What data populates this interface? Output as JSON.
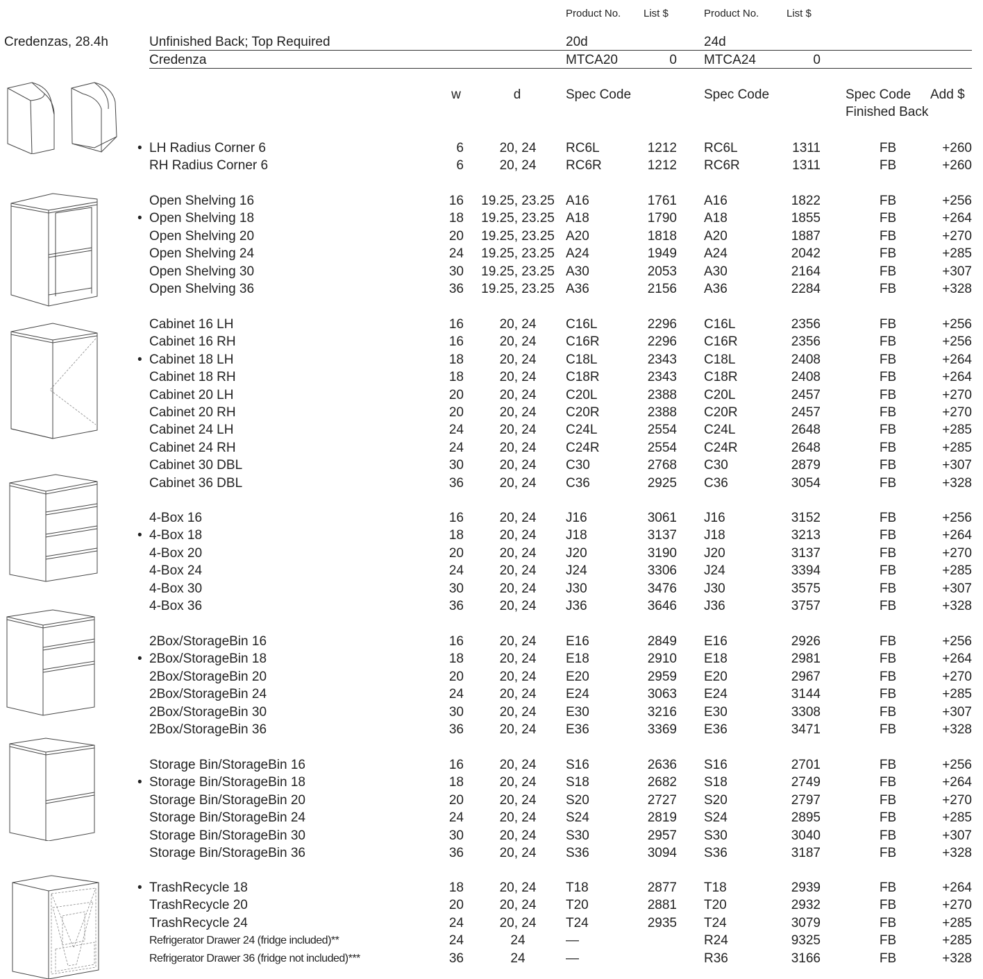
{
  "section_title": "Credenzas, 28.4h",
  "top_header": {
    "col1_product": "Product No.",
    "col1_list": "List $",
    "col2_product": "Product No.",
    "col2_list": "List $"
  },
  "base_rows": [
    {
      "label": "Unfinished Back; Top Required",
      "p20": "20d",
      "l20": "",
      "p24": "24d",
      "l24": ""
    },
    {
      "label": "Credenza",
      "p20": "MTCA20",
      "l20": "0",
      "p24": "MTCA24",
      "l24": "0"
    }
  ],
  "sub_header": {
    "w": "w",
    "d": "d",
    "spec1": "Spec Code",
    "spec2": "Spec Code",
    "spec3": "Spec Code",
    "add": "Add $",
    "finished_back": "Finished Back"
  },
  "groups": [
    {
      "icon": "radius-corner-icon",
      "rows": [
        {
          "dot": true,
          "name": "LH Radius Corner 6",
          "w": "6",
          "d": "20, 24",
          "c20": "RC6L",
          "p20": "1212",
          "c24": "RC6L",
          "p24": "1311",
          "fb": "FB",
          "add": "+260"
        },
        {
          "dot": false,
          "name": "RH Radius Corner 6",
          "w": "6",
          "d": "20, 24",
          "c20": "RC6R",
          "p20": "1212",
          "c24": "RC6R",
          "p24": "1311",
          "fb": "FB",
          "add": "+260"
        }
      ]
    },
    {
      "icon": "open-shelving-icon",
      "rows": [
        {
          "dot": false,
          "name": "Open Shelving 16",
          "w": "16",
          "d": "19.25, 23.25",
          "c20": "A16",
          "p20": "1761",
          "c24": "A16",
          "p24": "1822",
          "fb": "FB",
          "add": "+256"
        },
        {
          "dot": true,
          "name": "Open Shelving 18",
          "w": "18",
          "d": "19.25, 23.25",
          "c20": "A18",
          "p20": "1790",
          "c24": "A18",
          "p24": "1855",
          "fb": "FB",
          "add": "+264"
        },
        {
          "dot": false,
          "name": "Open Shelving 20",
          "w": "20",
          "d": "19.25, 23.25",
          "c20": "A20",
          "p20": "1818",
          "c24": "A20",
          "p24": "1887",
          "fb": "FB",
          "add": "+270"
        },
        {
          "dot": false,
          "name": "Open Shelving 24",
          "w": "24",
          "d": "19.25, 23.25",
          "c20": "A24",
          "p20": "1949",
          "c24": "A24",
          "p24": "2042",
          "fb": "FB",
          "add": "+285"
        },
        {
          "dot": false,
          "name": "Open Shelving 30",
          "w": "30",
          "d": "19.25, 23.25",
          "c20": "A30",
          "p20": "2053",
          "c24": "A30",
          "p24": "2164",
          "fb": "FB",
          "add": "+307"
        },
        {
          "dot": false,
          "name": "Open Shelving 36",
          "w": "36",
          "d": "19.25, 23.25",
          "c20": "A36",
          "p20": "2156",
          "c24": "A36",
          "p24": "2284",
          "fb": "FB",
          "add": "+328"
        }
      ]
    },
    {
      "icon": "cabinet-icon",
      "rows": [
        {
          "dot": false,
          "name": "Cabinet 16 LH",
          "w": "16",
          "d": "20, 24",
          "c20": "C16L",
          "p20": "2296",
          "c24": "C16L",
          "p24": "2356",
          "fb": "FB",
          "add": "+256"
        },
        {
          "dot": false,
          "name": "Cabinet 16 RH",
          "w": "16",
          "d": "20, 24",
          "c20": "C16R",
          "p20": "2296",
          "c24": "C16R",
          "p24": "2356",
          "fb": "FB",
          "add": "+256"
        },
        {
          "dot": true,
          "name": "Cabinet 18 LH",
          "w": "18",
          "d": "20, 24",
          "c20": "C18L",
          "p20": "2343",
          "c24": "C18L",
          "p24": "2408",
          "fb": "FB",
          "add": "+264"
        },
        {
          "dot": false,
          "name": "Cabinet 18 RH",
          "w": "18",
          "d": "20, 24",
          "c20": "C18R",
          "p20": "2343",
          "c24": "C18R",
          "p24": "2408",
          "fb": "FB",
          "add": "+264"
        },
        {
          "dot": false,
          "name": "Cabinet 20 LH",
          "w": "20",
          "d": "20, 24",
          "c20": "C20L",
          "p20": "2388",
          "c24": "C20L",
          "p24": "2457",
          "fb": "FB",
          "add": "+270"
        },
        {
          "dot": false,
          "name": "Cabinet 20 RH",
          "w": "20",
          "d": "20, 24",
          "c20": "C20R",
          "p20": "2388",
          "c24": "C20R",
          "p24": "2457",
          "fb": "FB",
          "add": "+270"
        },
        {
          "dot": false,
          "name": "Cabinet 24 LH",
          "w": "24",
          "d": "20, 24",
          "c20": "C24L",
          "p20": "2554",
          "c24": "C24L",
          "p24": "2648",
          "fb": "FB",
          "add": "+285"
        },
        {
          "dot": false,
          "name": "Cabinet 24 RH",
          "w": "24",
          "d": "20, 24",
          "c20": "C24R",
          "p20": "2554",
          "c24": "C24R",
          "p24": "2648",
          "fb": "FB",
          "add": "+285"
        },
        {
          "dot": false,
          "name": "Cabinet 30 DBL",
          "w": "30",
          "d": "20, 24",
          "c20": "C30",
          "p20": "2768",
          "c24": "C30",
          "p24": "2879",
          "fb": "FB",
          "add": "+307"
        },
        {
          "dot": false,
          "name": "Cabinet 36 DBL",
          "w": "36",
          "d": "20, 24",
          "c20": "C36",
          "p20": "2925",
          "c24": "C36",
          "p24": "3054",
          "fb": "FB",
          "add": "+328"
        }
      ]
    },
    {
      "icon": "four-box-drawer-icon",
      "rows": [
        {
          "dot": false,
          "name": "4-Box 16",
          "w": "16",
          "d": "20, 24",
          "c20": "J16",
          "p20": "3061",
          "c24": "J16",
          "p24": "3152",
          "fb": "FB",
          "add": "+256"
        },
        {
          "dot": true,
          "name": "4-Box 18",
          "w": "18",
          "d": "20, 24",
          "c20": "J18",
          "p20": "3137",
          "c24": "J18",
          "p24": "3213",
          "fb": "FB",
          "add": "+264"
        },
        {
          "dot": false,
          "name": "4-Box 20",
          "w": "20",
          "d": "20, 24",
          "c20": "J20",
          "p20": "3190",
          "c24": "J20",
          "p24": "3137",
          "fb": "FB",
          "add": "+270"
        },
        {
          "dot": false,
          "name": "4-Box 24",
          "w": "24",
          "d": "20, 24",
          "c20": "J24",
          "p20": "3306",
          "c24": "J24",
          "p24": "3394",
          "fb": "FB",
          "add": "+285"
        },
        {
          "dot": false,
          "name": "4-Box 30",
          "w": "30",
          "d": "20, 24",
          "c20": "J30",
          "p20": "3476",
          "c24": "J30",
          "p24": "3575",
          "fb": "FB",
          "add": "+307"
        },
        {
          "dot": false,
          "name": "4-Box 36",
          "w": "36",
          "d": "20, 24",
          "c20": "J36",
          "p20": "3646",
          "c24": "J36",
          "p24": "3757",
          "fb": "FB",
          "add": "+328"
        }
      ]
    },
    {
      "icon": "two-box-storage-bin-icon",
      "rows": [
        {
          "dot": false,
          "name": "2Box/StorageBin 16",
          "w": "16",
          "d": "20, 24",
          "c20": "E16",
          "p20": "2849",
          "c24": "E16",
          "p24": "2926",
          "fb": "FB",
          "add": "+256"
        },
        {
          "dot": true,
          "name": "2Box/StorageBin 18",
          "w": "18",
          "d": "20, 24",
          "c20": "E18",
          "p20": "2910",
          "c24": "E18",
          "p24": "2981",
          "fb": "FB",
          "add": "+264"
        },
        {
          "dot": false,
          "name": "2Box/StorageBin 20",
          "w": "20",
          "d": "20, 24",
          "c20": "E20",
          "p20": "2959",
          "c24": "E20",
          "p24": "2967",
          "fb": "FB",
          "add": "+270"
        },
        {
          "dot": false,
          "name": "2Box/StorageBin 24",
          "w": "24",
          "d": "20, 24",
          "c20": "E24",
          "p20": "3063",
          "c24": "E24",
          "p24": "3144",
          "fb": "FB",
          "add": "+285"
        },
        {
          "dot": false,
          "name": "2Box/StorageBin 30",
          "w": "30",
          "d": "20, 24",
          "c20": "E30",
          "p20": "3216",
          "c24": "E30",
          "p24": "3308",
          "fb": "FB",
          "add": "+307"
        },
        {
          "dot": false,
          "name": "2Box/StorageBin 36",
          "w": "36",
          "d": "20, 24",
          "c20": "E36",
          "p20": "3369",
          "c24": "E36",
          "p24": "3471",
          "fb": "FB",
          "add": "+328"
        }
      ]
    },
    {
      "icon": "storage-bin-icon",
      "rows": [
        {
          "dot": false,
          "name": "Storage Bin/StorageBin 16",
          "w": "16",
          "d": "20, 24",
          "c20": "S16",
          "p20": "2636",
          "c24": "S16",
          "p24": "2701",
          "fb": "FB",
          "add": "+256"
        },
        {
          "dot": true,
          "name": "Storage Bin/StorageBin 18",
          "w": "18",
          "d": "20, 24",
          "c20": "S18",
          "p20": "2682",
          "c24": "S18",
          "p24": "2749",
          "fb": "FB",
          "add": "+264"
        },
        {
          "dot": false,
          "name": "Storage Bin/StorageBin 20",
          "w": "20",
          "d": "20, 24",
          "c20": "S20",
          "p20": "2727",
          "c24": "S20",
          "p24": "2797",
          "fb": "FB",
          "add": "+270"
        },
        {
          "dot": false,
          "name": "Storage Bin/StorageBin 24",
          "w": "24",
          "d": "20, 24",
          "c20": "S24",
          "p20": "2819",
          "c24": "S24",
          "p24": "2895",
          "fb": "FB",
          "add": "+285"
        },
        {
          "dot": false,
          "name": "Storage Bin/StorageBin 30",
          "w": "30",
          "d": "20, 24",
          "c20": "S30",
          "p20": "2957",
          "c24": "S30",
          "p24": "3040",
          "fb": "FB",
          "add": "+307"
        },
        {
          "dot": false,
          "name": "Storage Bin/StorageBin 36",
          "w": "36",
          "d": "20, 24",
          "c20": "S36",
          "p20": "3094",
          "c24": "S36",
          "p24": "3187",
          "fb": "FB",
          "add": "+328"
        }
      ]
    },
    {
      "icon": "trash-recycle-icon",
      "rows": [
        {
          "dot": true,
          "name": "TrashRecycle 18",
          "w": "18",
          "d": "20, 24",
          "c20": "T18",
          "p20": "2877",
          "c24": "T18",
          "p24": "2939",
          "fb": "FB",
          "add": "+264"
        },
        {
          "dot": false,
          "name": "TrashRecycle 20",
          "w": "20",
          "d": "20, 24",
          "c20": "T20",
          "p20": "2881",
          "c24": "T20",
          "p24": "2932",
          "fb": "FB",
          "add": "+270"
        },
        {
          "dot": false,
          "name": "TrashRecycle 24",
          "w": "24",
          "d": "20, 24",
          "c20": "T24",
          "p20": "2935",
          "c24": "T24",
          "p24": "3079",
          "fb": "FB",
          "add": "+285"
        },
        {
          "dot": false,
          "small": true,
          "name": "Refrigerator Drawer 24 (fridge included)**",
          "w": "24",
          "d": "24",
          "c20": "—",
          "p20": "",
          "c24": "R24",
          "p24": "9325",
          "fb": "FB",
          "add": "+285"
        },
        {
          "dot": false,
          "small": true,
          "name": "Refrigerator Drawer 36 (fridge not included)***",
          "w": "36",
          "d": "24",
          "c20": "—",
          "p20": "",
          "c24": "R36",
          "p24": "3166",
          "fb": "FB",
          "add": "+328"
        }
      ]
    }
  ]
}
